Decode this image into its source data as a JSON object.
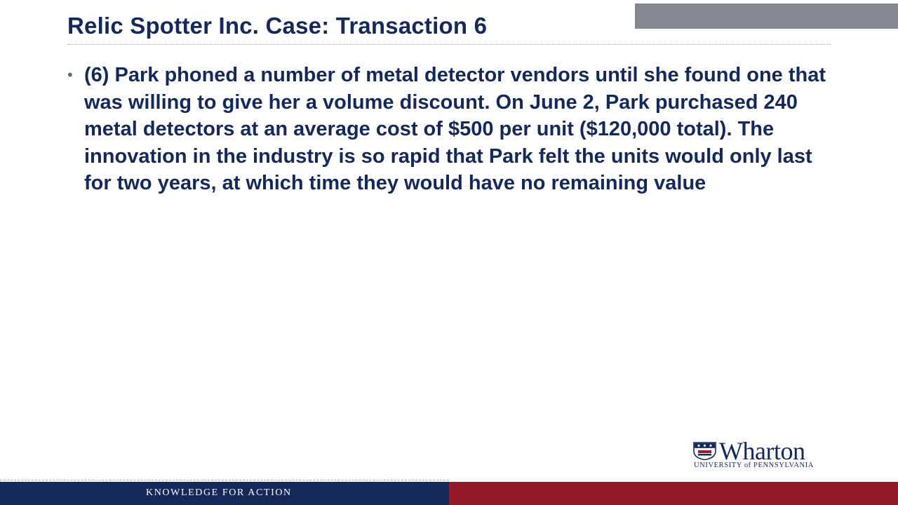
{
  "slide": {
    "title": "Relic Spotter Inc. Case: Transaction 6",
    "bullets": [
      {
        "marker": "•",
        "text": "(6) Park phoned a number of metal detector vendors until she found one that was willing to give her a volume discount.  On June 2, Park purchased 240 metal detectors at an average cost of $500 per unit ($120,000 total). The innovation in the industry is so rapid that Park felt the units would only last for two years, at which time they would have no remaining value"
      }
    ]
  },
  "branding": {
    "logo_wordmark": "Wharton",
    "logo_subtitle": "UNIVERSITY of PENNSYLVANIA",
    "footer_tagline": "KNOWLEDGE FOR ACTION"
  },
  "colors": {
    "title_text": "#14285a",
    "footer_navy": "#14285a",
    "footer_red": "#951b2c",
    "top_bar_gray": "#838892"
  }
}
